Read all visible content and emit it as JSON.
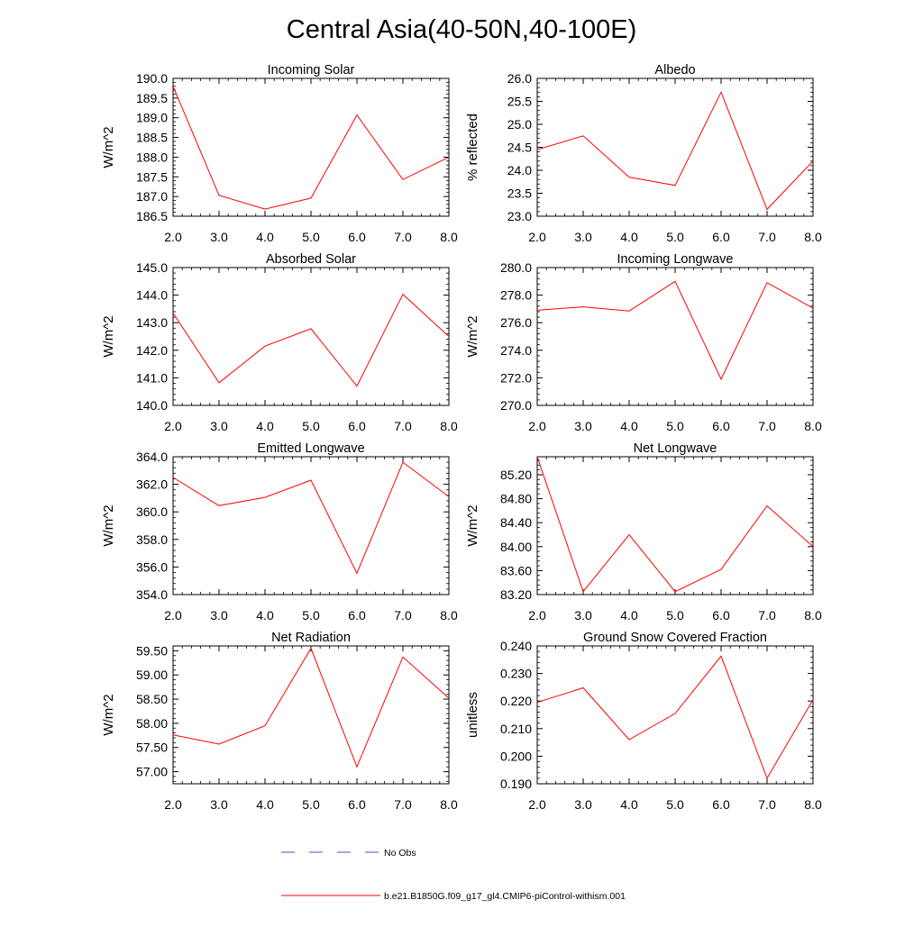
{
  "title": "Central Asia(40-50N,40-100E)",
  "colors": {
    "model": "#ff0000",
    "obs": "#4b4bd0",
    "axis": "#000000"
  },
  "legend": [
    {
      "label": "No Obs",
      "color": "#4b4bd0",
      "dash": "dashed"
    },
    {
      "label": "b.e21.B1850G.f09_g17_gl4.CMIP6-piControl-withism.001",
      "color": "#ff0000",
      "dash": "solid"
    }
  ],
  "chart_data": [
    {
      "type": "line",
      "title": "Incoming Solar",
      "ylabel": "W/m^2",
      "x": [
        2,
        3,
        4,
        5,
        6,
        7,
        8
      ],
      "xticks": [
        "2.0",
        "3.0",
        "4.0",
        "5.0",
        "6.0",
        "7.0",
        "8.0"
      ],
      "xlim": [
        2,
        8
      ],
      "ylim": [
        186.5,
        190.0
      ],
      "yticks": [
        186.5,
        187.0,
        187.5,
        188.0,
        188.5,
        189.0,
        189.5,
        190.0
      ],
      "ytick_labels": [
        "186.5",
        "187.0",
        "187.5",
        "188.0",
        "188.5",
        "189.0",
        "189.5",
        "190.0"
      ],
      "series": [
        {
          "values": [
            189.8,
            187.03,
            186.68,
            186.96,
            189.07,
            187.43,
            188.0
          ]
        }
      ]
    },
    {
      "type": "line",
      "title": "Albedo",
      "ylabel": "% reflected",
      "x": [
        2,
        3,
        4,
        5,
        6,
        7,
        8
      ],
      "xticks": [
        "2.0",
        "3.0",
        "4.0",
        "5.0",
        "6.0",
        "7.0",
        "8.0"
      ],
      "xlim": [
        2,
        8
      ],
      "ylim": [
        23.0,
        26.0
      ],
      "yticks": [
        23.0,
        23.5,
        24.0,
        24.5,
        25.0,
        25.5,
        26.0
      ],
      "ytick_labels": [
        "23.0",
        "23.5",
        "24.0",
        "24.5",
        "25.0",
        "25.5",
        "26.0"
      ],
      "series": [
        {
          "values": [
            24.45,
            24.75,
            23.85,
            23.67,
            25.7,
            23.15,
            24.2
          ]
        }
      ]
    },
    {
      "type": "line",
      "title": "Absorbed Solar",
      "ylabel": "W/m^2",
      "x": [
        2,
        3,
        4,
        5,
        6,
        7,
        8
      ],
      "xticks": [
        "2.0",
        "3.0",
        "4.0",
        "5.0",
        "6.0",
        "7.0",
        "8.0"
      ],
      "xlim": [
        2,
        8
      ],
      "ylim": [
        140.0,
        145.0
      ],
      "yticks": [
        140.0,
        141.0,
        142.0,
        143.0,
        144.0,
        145.0
      ],
      "ytick_labels": [
        "140.0",
        "141.0",
        "142.0",
        "143.0",
        "144.0",
        "145.0"
      ],
      "series": [
        {
          "values": [
            143.35,
            140.82,
            142.15,
            142.78,
            140.7,
            144.03,
            142.5
          ]
        }
      ]
    },
    {
      "type": "line",
      "title": "Incoming Longwave",
      "ylabel": "W/m^2",
      "x": [
        2,
        3,
        4,
        5,
        6,
        7,
        8
      ],
      "xticks": [
        "2.0",
        "3.0",
        "4.0",
        "5.0",
        "6.0",
        "7.0",
        "8.0"
      ],
      "xlim": [
        2,
        8
      ],
      "ylim": [
        270.0,
        280.0
      ],
      "yticks": [
        270.0,
        272.0,
        274.0,
        276.0,
        278.0,
        280.0
      ],
      "ytick_labels": [
        "270.0",
        "272.0",
        "274.0",
        "276.0",
        "278.0",
        "280.0"
      ],
      "series": [
        {
          "values": [
            276.9,
            277.15,
            276.85,
            279.0,
            271.9,
            278.9,
            277.05
          ]
        }
      ]
    },
    {
      "type": "line",
      "title": "Emitted Longwave",
      "ylabel": "W/m^2",
      "x": [
        2,
        3,
        4,
        5,
        6,
        7,
        8
      ],
      "xticks": [
        "2.0",
        "3.0",
        "4.0",
        "5.0",
        "6.0",
        "7.0",
        "8.0"
      ],
      "xlim": [
        2,
        8
      ],
      "ylim": [
        354.0,
        364.0
      ],
      "yticks": [
        354.0,
        356.0,
        358.0,
        360.0,
        362.0,
        364.0
      ],
      "ytick_labels": [
        "354.0",
        "356.0",
        "358.0",
        "360.0",
        "362.0",
        "364.0"
      ],
      "series": [
        {
          "values": [
            362.5,
            360.45,
            361.05,
            362.3,
            355.55,
            363.6,
            361.1
          ]
        }
      ]
    },
    {
      "type": "line",
      "title": "Net Longwave",
      "ylabel": "W/m^2",
      "x": [
        2,
        3,
        4,
        5,
        6,
        7,
        8
      ],
      "xticks": [
        "2.0",
        "3.0",
        "4.0",
        "5.0",
        "6.0",
        "7.0",
        "8.0"
      ],
      "xlim": [
        2,
        8
      ],
      "ylim": [
        83.2,
        85.5
      ],
      "yticks": [
        83.2,
        83.6,
        84.0,
        84.4,
        84.8,
        85.2
      ],
      "ytick_labels": [
        "83.20",
        "83.60",
        "84.00",
        "84.40",
        "84.80",
        "85.20"
      ],
      "series": [
        {
          "values": [
            85.5,
            83.25,
            84.2,
            83.25,
            83.62,
            84.68,
            84.0
          ]
        }
      ]
    },
    {
      "type": "line",
      "title": "Net Radiation",
      "ylabel": "W/m^2",
      "x": [
        2,
        3,
        4,
        5,
        6,
        7,
        8
      ],
      "xticks": [
        "2.0",
        "3.0",
        "4.0",
        "5.0",
        "6.0",
        "7.0",
        "8.0"
      ],
      "xlim": [
        2,
        8
      ],
      "ylim": [
        56.75,
        59.6
      ],
      "yticks": [
        57.0,
        57.5,
        58.0,
        58.5,
        59.0,
        59.5
      ],
      "ytick_labels": [
        "57.00",
        "57.50",
        "58.00",
        "58.50",
        "59.00",
        "59.50"
      ],
      "series": [
        {
          "values": [
            57.76,
            57.57,
            57.95,
            59.55,
            57.1,
            59.37,
            58.52
          ]
        }
      ]
    },
    {
      "type": "line",
      "title": "Ground Snow Covered Fraction",
      "ylabel": "unitless",
      "x": [
        2,
        3,
        4,
        5,
        6,
        7,
        8
      ],
      "xticks": [
        "2.0",
        "3.0",
        "4.0",
        "5.0",
        "6.0",
        "7.0",
        "8.0"
      ],
      "xlim": [
        2,
        8
      ],
      "ylim": [
        0.19,
        0.24
      ],
      "yticks": [
        0.19,
        0.2,
        0.21,
        0.22,
        0.23,
        0.24
      ],
      "ytick_labels": [
        "0.190",
        "0.200",
        "0.210",
        "0.220",
        "0.230",
        "0.240"
      ],
      "series": [
        {
          "values": [
            0.2195,
            0.2248,
            0.206,
            0.2155,
            0.2363,
            0.192,
            0.2205
          ]
        }
      ]
    }
  ]
}
